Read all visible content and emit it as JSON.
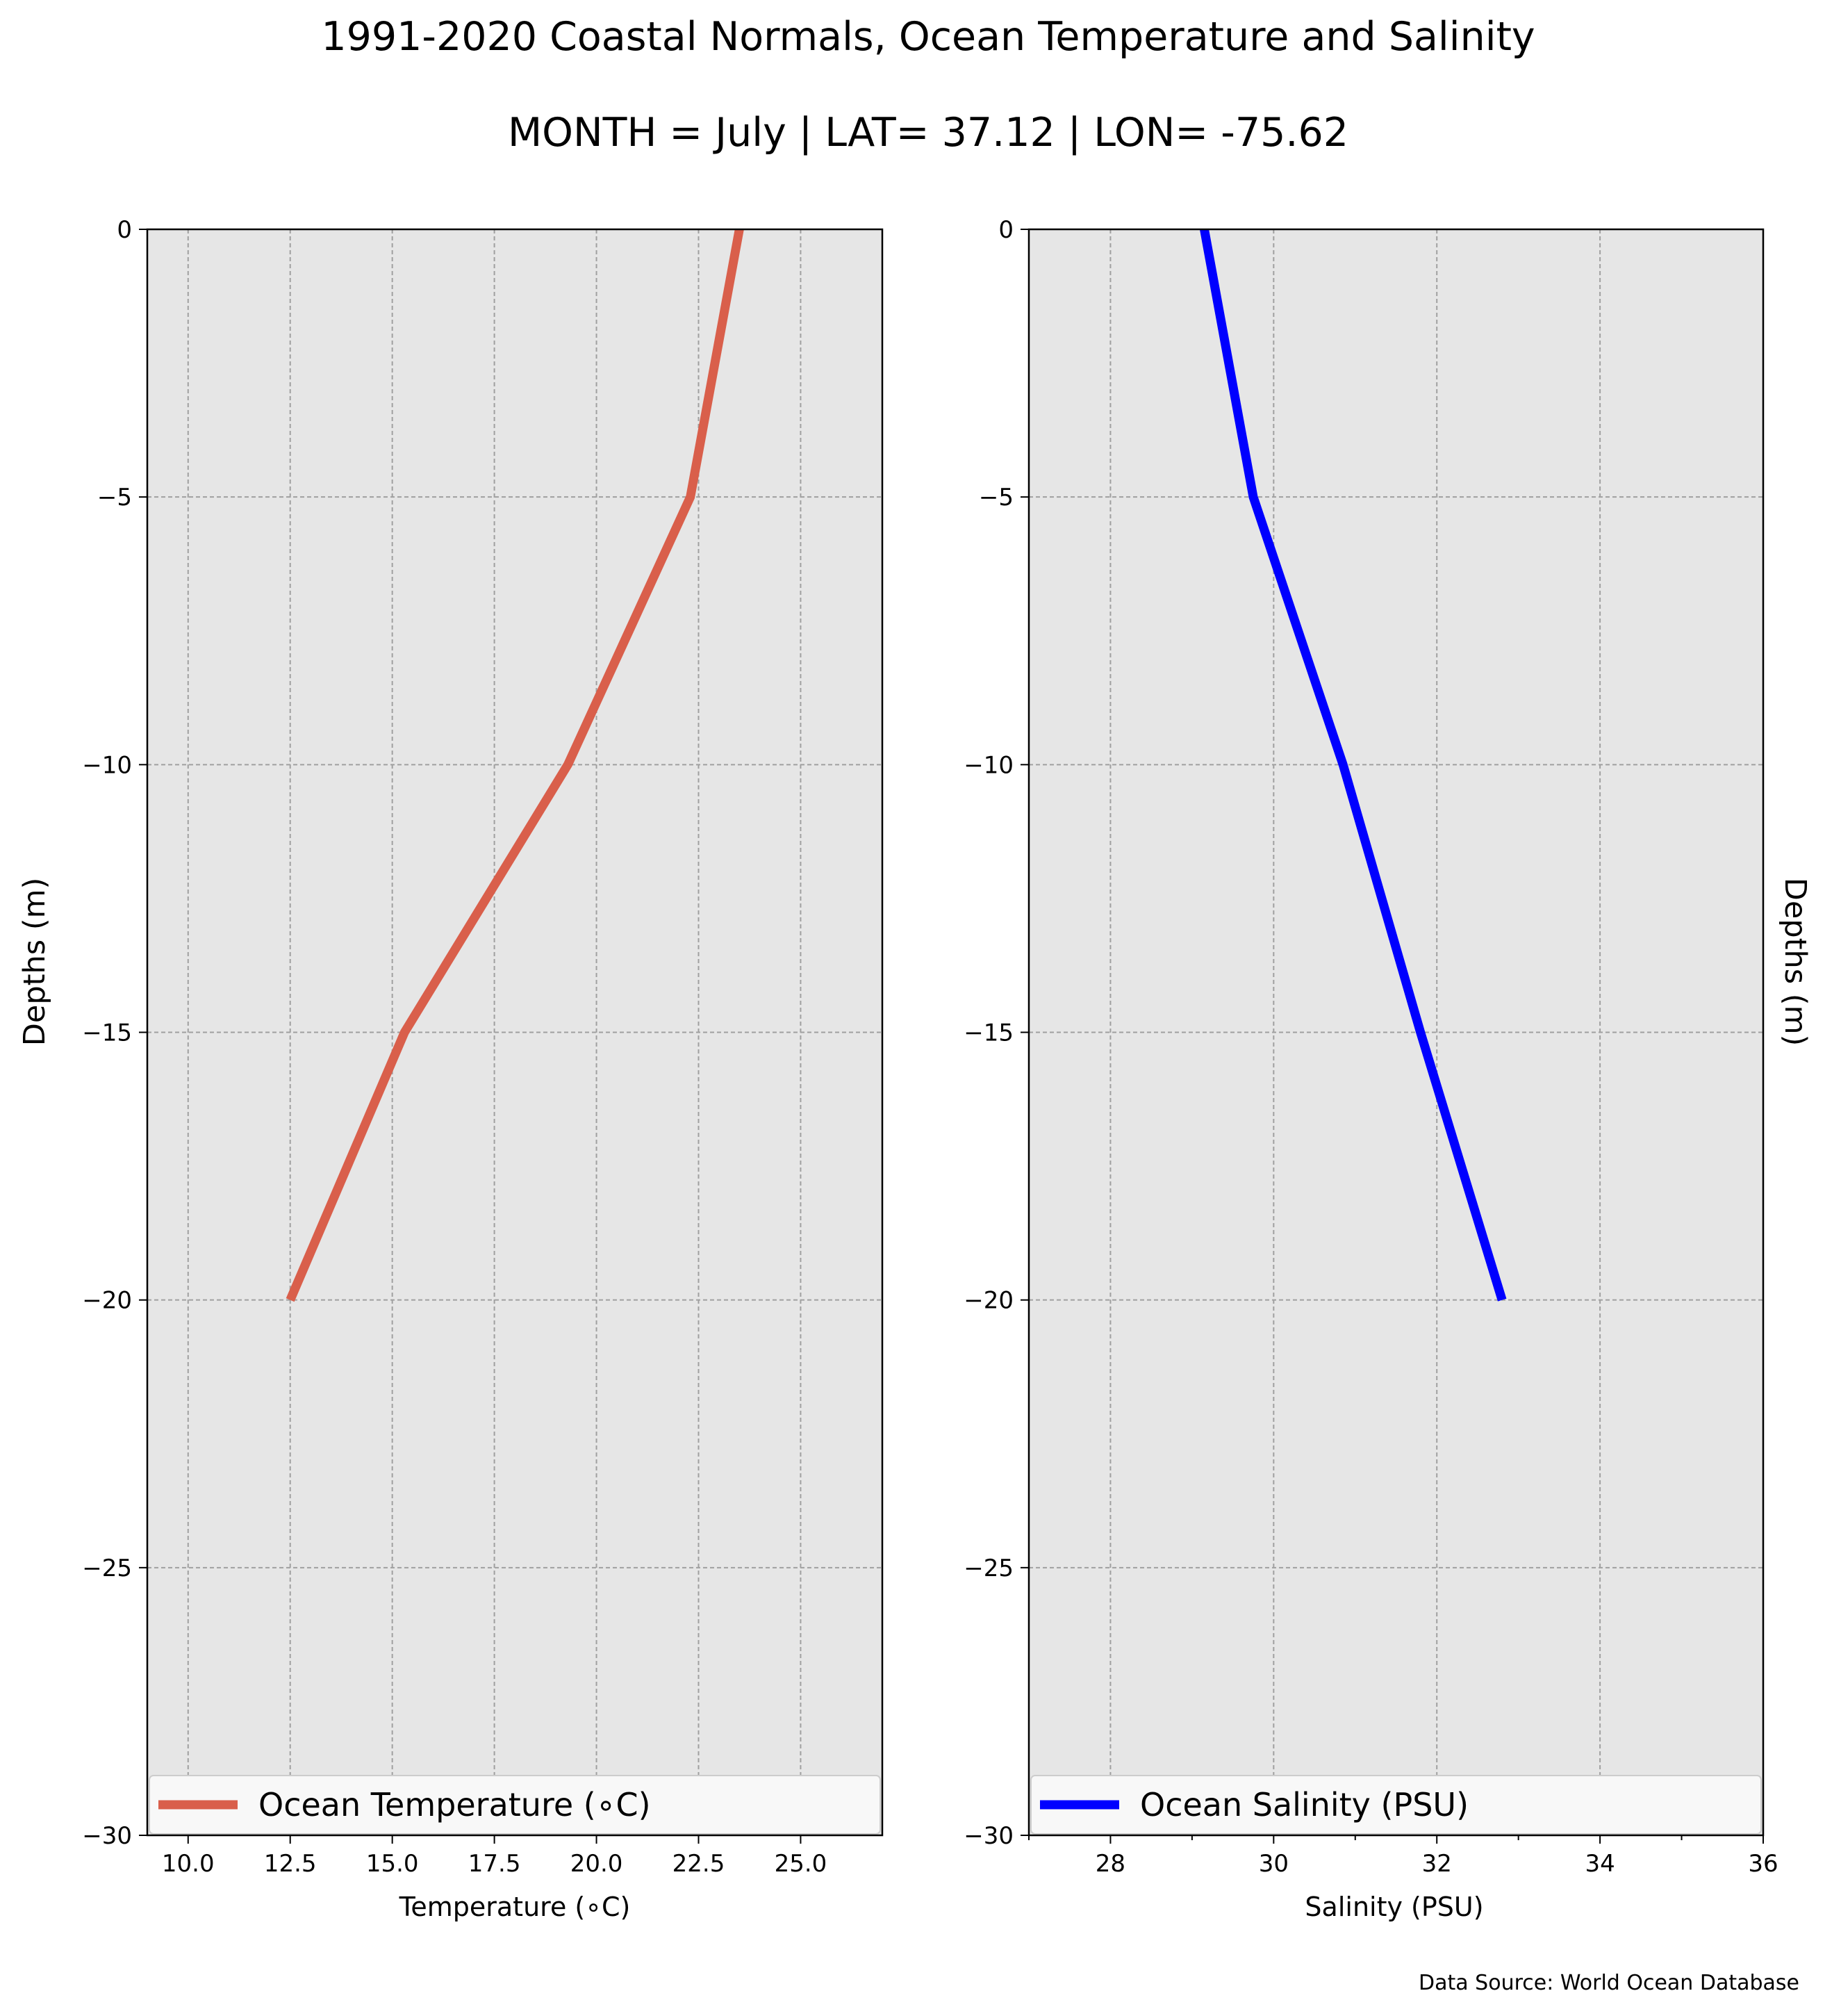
{
  "title_line1": "1991-2020 Coastal Normals, Ocean Temperature and Salinity",
  "title_line2": "MONTH = July | LAT= 37.12 | LON= -75.62",
  "source_note": "Data Source: World Ocean Database",
  "colors": {
    "plot_background": "#e6e6e6",
    "grid": "#a0a0a0",
    "temperature": "#d95f4b",
    "salinity": "#0000ff"
  },
  "chart_data": [
    {
      "type": "line",
      "xlabel": "Temperature (∘C)",
      "ylabel": "Depths (m)",
      "xlim": [
        9,
        27
      ],
      "ylim": [
        -30,
        0
      ],
      "xticks": [
        10.0,
        12.5,
        15.0,
        17.5,
        20.0,
        22.5,
        25.0
      ],
      "xtick_labels": [
        "10.0",
        "12.5",
        "15.0",
        "17.5",
        "20.0",
        "22.5",
        "25.0"
      ],
      "yticks": [
        0,
        -5,
        -10,
        -15,
        -20,
        -25,
        -30
      ],
      "ytick_labels": [
        "0",
        "−5",
        "−10",
        "−15",
        "−20",
        "−25",
        "−30"
      ],
      "grid": true,
      "legend_position": "bottom",
      "series": [
        {
          "name": "Ocean Temperature (∘C)",
          "color": "#d95f4b",
          "x": [
            23.5,
            22.3,
            19.3,
            15.3,
            12.5
          ],
          "y": [
            0,
            -5,
            -10,
            -15,
            -20
          ]
        }
      ]
    },
    {
      "type": "line",
      "xlabel": "Salinity (PSU)",
      "ylabel": "Depths (m)",
      "xlim": [
        27,
        36
      ],
      "ylim": [
        -30,
        0
      ],
      "xticks": [
        28,
        30,
        32,
        34,
        36
      ],
      "xtick_labels": [
        "28",
        "30",
        "32",
        "34",
        "36"
      ],
      "yticks": [
        0,
        -5,
        -10,
        -15,
        -20,
        -25,
        -30
      ],
      "ytick_labels": [
        "0",
        "−5",
        "−10",
        "−15",
        "−20",
        "−25",
        "−30"
      ],
      "grid": true,
      "legend_position": "bottom",
      "series": [
        {
          "name": "Ocean Salinity (PSU)",
          "color": "#0000ff",
          "x": [
            29.15,
            29.75,
            30.85,
            31.8,
            32.8
          ],
          "y": [
            0,
            -5,
            -10,
            -15,
            -20
          ]
        }
      ]
    }
  ]
}
